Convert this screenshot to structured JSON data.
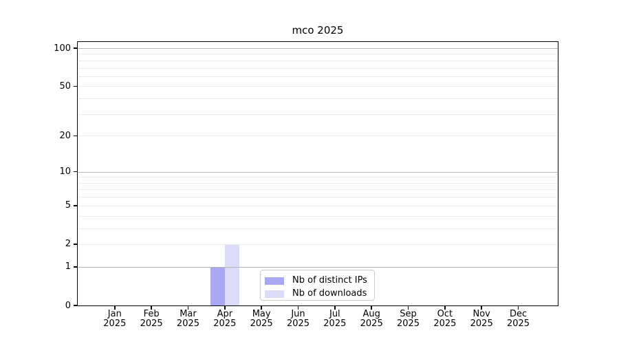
{
  "chart_data": {
    "type": "bar",
    "title": "mco 2025",
    "categories": [
      "Jan 2025",
      "Feb 2025",
      "Mar 2025",
      "Apr 2025",
      "May 2025",
      "Jun 2025",
      "Jul 2025",
      "Aug 2025",
      "Sep 2025",
      "Oct 2025",
      "Nov 2025",
      "Dec 2025"
    ],
    "months": [
      "Jan",
      "Feb",
      "Mar",
      "Apr",
      "May",
      "Jun",
      "Jul",
      "Aug",
      "Sep",
      "Oct",
      "Nov",
      "Dec"
    ],
    "year_label": "2025",
    "series": [
      {
        "name": "Nb of distinct IPs",
        "color": "#a8a8f5",
        "values": [
          0,
          0,
          0,
          1,
          0,
          0,
          0,
          0,
          0,
          0,
          0,
          0
        ]
      },
      {
        "name": "Nb of downloads",
        "color": "#dcdcf8",
        "values": [
          0,
          0,
          0,
          2,
          0,
          0,
          0,
          0,
          0,
          0,
          0,
          0
        ]
      }
    ],
    "y_axis": {
      "scale": "log10(1+x)",
      "tick_values": [
        0,
        1,
        2,
        5,
        10,
        20,
        50,
        100
      ],
      "tick_labels": [
        "0",
        "1",
        "2",
        "5",
        "10",
        "20",
        "50",
        "100"
      ],
      "major_gridlines": [
        1,
        10,
        100
      ],
      "minor_gridlines": [
        2,
        3,
        4,
        5,
        6,
        7,
        8,
        9,
        20,
        30,
        40,
        50,
        60,
        70,
        80,
        90
      ],
      "ylim": [
        0,
        113
      ]
    },
    "legend": {
      "position": "lower center",
      "entries": [
        "Nb of distinct IPs",
        "Nb of downloads"
      ]
    },
    "grid": true
  },
  "colors": {
    "background": "#ffffff",
    "spine": "#000000",
    "text": "#000000",
    "major_grid": "#b3b3b3",
    "minor_grid": "#ececec",
    "legend_border": "#cccccc"
  }
}
